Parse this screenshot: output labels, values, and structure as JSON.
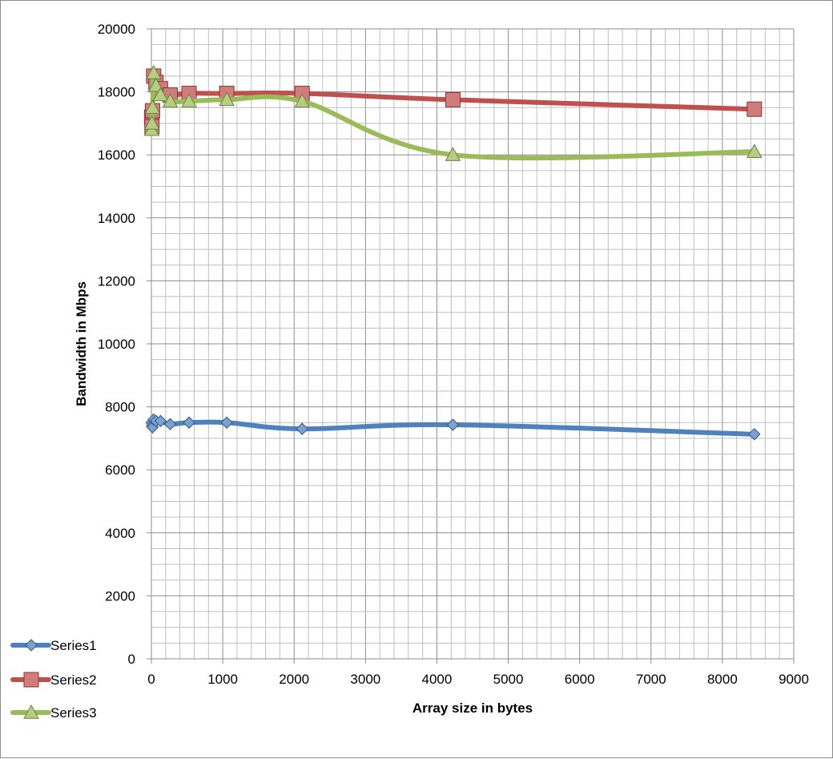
{
  "chart_data": {
    "type": "line",
    "title": "",
    "xlabel": "Array size in bytes",
    "ylabel": "Bandwidth in Mbps",
    "xlim": [
      0,
      9000
    ],
    "ylim": [
      0,
      20000
    ],
    "x_ticks": [
      0,
      1000,
      2000,
      3000,
      4000,
      5000,
      6000,
      7000,
      8000,
      9000
    ],
    "y_ticks": [
      0,
      2000,
      4000,
      6000,
      8000,
      10000,
      12000,
      14000,
      16000,
      18000,
      20000
    ],
    "grid": true,
    "smooth": true,
    "legend_position": "bottom-left",
    "series": [
      {
        "name": "Series1",
        "color": "#4f81bd",
        "marker": "diamond",
        "x": [
          4,
          8,
          16,
          32,
          64,
          128,
          264,
          528,
          1056,
          2112,
          4224,
          8448
        ],
        "y": [
          7500,
          7400,
          7350,
          7600,
          7550,
          7550,
          7450,
          7500,
          7500,
          7300,
          7430,
          7130
        ]
      },
      {
        "name": "Series2",
        "color": "#c0504d",
        "marker": "square",
        "x": [
          4,
          8,
          16,
          32,
          64,
          128,
          264,
          528,
          1056,
          2112,
          4224,
          8448
        ],
        "y": [
          17200,
          16900,
          17400,
          18500,
          18300,
          18100,
          17900,
          17950,
          17950,
          17950,
          17750,
          17450
        ]
      },
      {
        "name": "Series3",
        "color": "#9bbb59",
        "marker": "triangle",
        "x": [
          4,
          8,
          16,
          32,
          64,
          128,
          264,
          528,
          1056,
          2112,
          4224,
          8448
        ],
        "y": [
          16800,
          17000,
          17500,
          18600,
          18200,
          17900,
          17700,
          17700,
          17750,
          17700,
          16000,
          16100
        ]
      }
    ]
  }
}
